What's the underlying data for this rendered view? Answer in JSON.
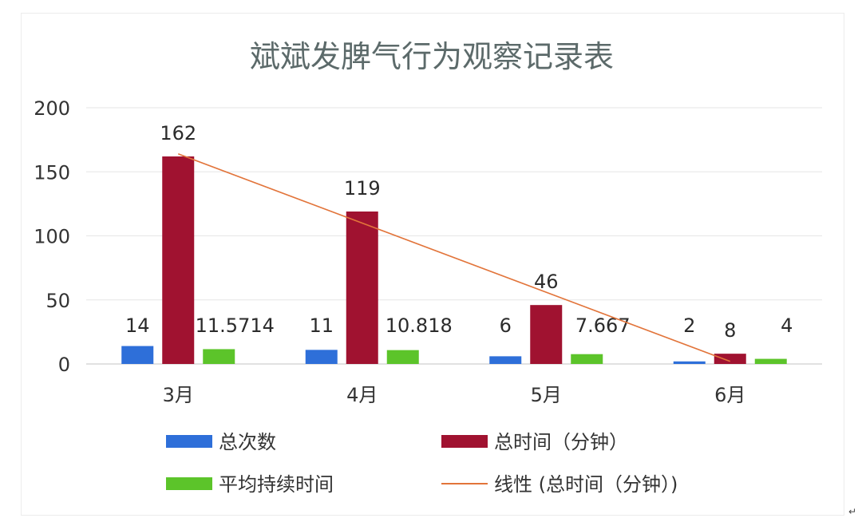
{
  "chart_data": {
    "type": "bar",
    "title": "斌斌发脾气行为观察记录表",
    "categories": [
      "3月",
      "4月",
      "5月",
      "6月"
    ],
    "series": [
      {
        "name": "总次数",
        "values": [
          14,
          11,
          6,
          2
        ],
        "labels": [
          "14",
          "11",
          "6",
          "2"
        ],
        "color": "#2e6fd9"
      },
      {
        "name": "总时间（分钟）",
        "values": [
          162,
          119,
          46,
          8
        ],
        "labels": [
          "162",
          "119",
          "46",
          "8"
        ],
        "color": "#a01230"
      },
      {
        "name": "平均持续时间",
        "values": [
          11.5714,
          10.818,
          7.667,
          4
        ],
        "labels": [
          "11.5714",
          "10.818",
          "7.667",
          "4"
        ],
        "color": "#5cc42a"
      }
    ],
    "trendline": {
      "name": "线性 (总时间（分钟）)",
      "series": "总时间（分钟）",
      "start": 164,
      "end": 2,
      "color": "#e2743a"
    },
    "ylim": [
      0,
      200
    ],
    "yticks": [
      0,
      50,
      100,
      150,
      200
    ],
    "ytick_labels": [
      "0",
      "50",
      "100",
      "150",
      "200"
    ],
    "grid": true,
    "legend_position": "bottom"
  },
  "page": {
    "return_mark": "↵"
  }
}
